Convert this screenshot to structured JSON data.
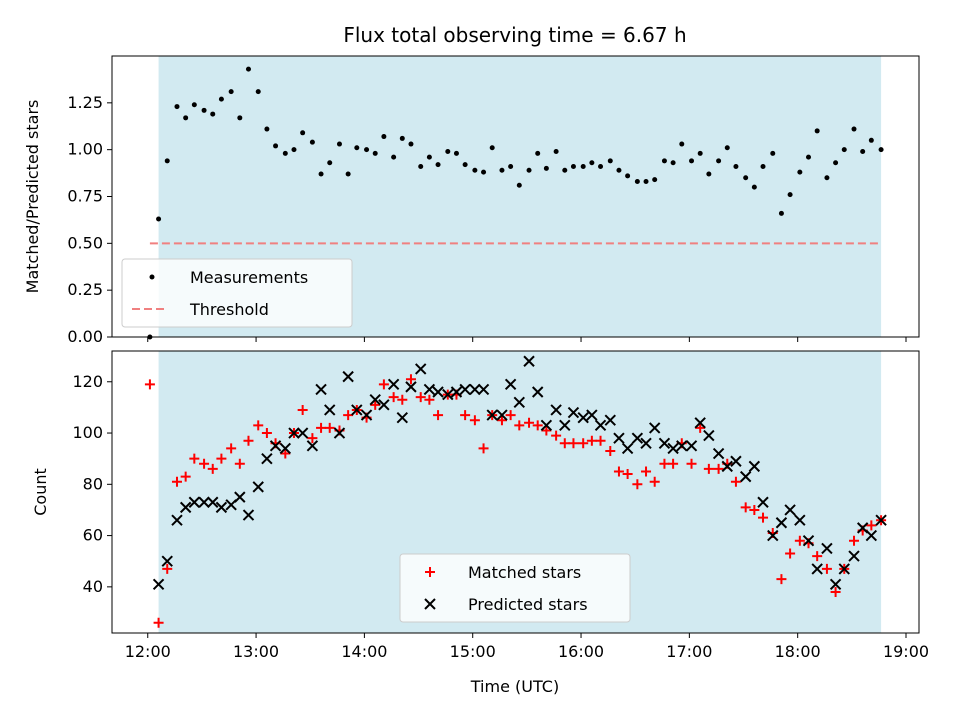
{
  "chart_data": {
    "title": "Flux total observing time = 6.67 h",
    "xlabel": "Time (UTC)",
    "x_tick_labels": [
      "12:00",
      "13:00",
      "14:00",
      "15:00",
      "16:00",
      "17:00",
      "18:00",
      "19:00"
    ],
    "x_ticks_hours": [
      12,
      13,
      14,
      15,
      16,
      17,
      18,
      19
    ],
    "xlim_hours": [
      11.67,
      19.12
    ],
    "shaded_span_hours": [
      12.1,
      18.77
    ],
    "shaded_color": "#add8e6",
    "panels": [
      {
        "type": "scatter",
        "ylabel": "Matched/Predicted stars",
        "ylim": [
          0,
          1.5
        ],
        "y_ticks": [
          0,
          0.25,
          0.5,
          0.75,
          1.0,
          1.25
        ],
        "y_tick_labels": [
          "0.00",
          "0.25",
          "0.50",
          "0.75",
          "1.00",
          "1.25"
        ],
        "legend": {
          "location": "lower-left",
          "entries": [
            "Measurements",
            "Threshold"
          ]
        },
        "series": [
          {
            "name": "Measurements",
            "color": "#000000",
            "marker": "dot",
            "x": [
              12.02,
              12.1,
              12.18,
              12.27,
              12.35,
              12.43,
              12.52,
              12.6,
              12.68,
              12.77,
              12.85,
              12.93,
              13.02,
              13.1,
              13.18,
              13.27,
              13.35,
              13.43,
              13.52,
              13.6,
              13.68,
              13.77,
              13.85,
              13.93,
              14.02,
              14.1,
              14.18,
              14.27,
              14.35,
              14.43,
              14.52,
              14.6,
              14.68,
              14.77,
              14.85,
              14.93,
              15.02,
              15.1,
              15.18,
              15.27,
              15.35,
              15.43,
              15.52,
              15.6,
              15.68,
              15.77,
              15.85,
              15.93,
              16.02,
              16.1,
              16.18,
              16.27,
              16.35,
              16.43,
              16.52,
              16.6,
              16.68,
              16.77,
              16.85,
              16.93,
              17.02,
              17.1,
              17.18,
              17.27,
              17.35,
              17.43,
              17.52,
              17.6,
              17.68,
              17.77,
              17.85,
              17.93,
              18.02,
              18.1,
              18.18,
              18.27,
              18.35,
              18.43,
              18.52,
              18.6,
              18.68,
              18.77
            ],
            "y": [
              0.0,
              0.63,
              0.94,
              1.23,
              1.17,
              1.24,
              1.21,
              1.19,
              1.27,
              1.31,
              1.17,
              1.43,
              1.31,
              1.11,
              1.02,
              0.98,
              1.0,
              1.09,
              1.04,
              0.87,
              0.93,
              1.03,
              0.87,
              1.01,
              1.0,
              0.98,
              1.07,
              0.96,
              1.06,
              1.03,
              0.91,
              0.96,
              0.92,
              0.99,
              0.98,
              0.92,
              0.89,
              0.88,
              1.01,
              0.89,
              0.91,
              0.81,
              0.89,
              0.98,
              0.9,
              0.99,
              0.89,
              0.91,
              0.91,
              0.93,
              0.91,
              0.94,
              0.89,
              0.86,
              0.83,
              0.83,
              0.84,
              0.94,
              0.93,
              1.03,
              0.94,
              0.98,
              0.87,
              0.94,
              1.01,
              0.91,
              0.85,
              0.8,
              0.91,
              0.98,
              0.66,
              0.76,
              0.88,
              0.96,
              1.1,
              0.85,
              0.93,
              1.0,
              1.11,
              0.99,
              1.05,
              1.0
            ]
          },
          {
            "name": "Threshold",
            "color": "#f08080",
            "style": "dashed",
            "x": [
              12.02,
              18.77
            ],
            "y": [
              0.5,
              0.5
            ]
          }
        ]
      },
      {
        "type": "scatter",
        "ylabel": "Count",
        "ylim": [
          22,
          132
        ],
        "y_ticks": [
          40,
          60,
          80,
          100,
          120
        ],
        "y_tick_labels": [
          "40",
          "60",
          "80",
          "100",
          "120"
        ],
        "legend": {
          "location": "lower-center",
          "entries": [
            "Matched stars",
            "Predicted stars"
          ]
        },
        "series": [
          {
            "name": "Matched stars",
            "color": "#ff0000",
            "marker": "plus",
            "x": [
              12.02,
              12.1,
              12.18,
              12.27,
              12.35,
              12.43,
              12.52,
              12.6,
              12.68,
              12.77,
              12.85,
              12.93,
              13.02,
              13.1,
              13.18,
              13.27,
              13.35,
              13.43,
              13.52,
              13.6,
              13.68,
              13.77,
              13.85,
              13.93,
              14.02,
              14.1,
              14.18,
              14.27,
              14.35,
              14.43,
              14.52,
              14.6,
              14.68,
              14.77,
              14.85,
              14.93,
              15.02,
              15.1,
              15.18,
              15.27,
              15.35,
              15.43,
              15.52,
              15.6,
              15.68,
              15.77,
              15.85,
              15.93,
              16.02,
              16.1,
              16.18,
              16.27,
              16.35,
              16.43,
              16.52,
              16.6,
              16.68,
              16.77,
              16.85,
              16.93,
              17.02,
              17.1,
              17.18,
              17.27,
              17.35,
              17.43,
              17.52,
              17.6,
              17.68,
              17.77,
              17.85,
              17.93,
              18.02,
              18.1,
              18.18,
              18.27,
              18.35,
              18.43,
              18.52,
              18.6,
              18.68,
              18.77
            ],
            "y": [
              119,
              26,
              47,
              81,
              83,
              90,
              88,
              86,
              90,
              94,
              88,
              97,
              103,
              100,
              96,
              92,
              100,
              109,
              98,
              102,
              102,
              101,
              107,
              109,
              106,
              111,
              119,
              114,
              113,
              121,
              114,
              113,
              107,
              115,
              115,
              107,
              105,
              94,
              107,
              105,
              107,
              103,
              104,
              103,
              101,
              99,
              96,
              96,
              96,
              97,
              97,
              93,
              85,
              84,
              80,
              85,
              81,
              88,
              88,
              96,
              88,
              102,
              86,
              86,
              88,
              81,
              71,
              70,
              67,
              61,
              43,
              53,
              58,
              57,
              52,
              47,
              38,
              47,
              58,
              62,
              64,
              66
            ]
          },
          {
            "name": "Predicted stars",
            "color": "#000000",
            "marker": "x",
            "x": [
              12.1,
              12.18,
              12.27,
              12.35,
              12.43,
              12.52,
              12.6,
              12.68,
              12.77,
              12.85,
              12.93,
              13.02,
              13.1,
              13.18,
              13.27,
              13.35,
              13.43,
              13.52,
              13.6,
              13.68,
              13.77,
              13.85,
              13.93,
              14.02,
              14.1,
              14.18,
              14.27,
              14.35,
              14.43,
              14.52,
              14.6,
              14.68,
              14.77,
              14.85,
              14.93,
              15.02,
              15.1,
              15.18,
              15.27,
              15.35,
              15.43,
              15.52,
              15.6,
              15.68,
              15.77,
              15.85,
              15.93,
              16.02,
              16.1,
              16.18,
              16.27,
              16.35,
              16.43,
              16.52,
              16.6,
              16.68,
              16.77,
              16.85,
              16.93,
              17.02,
              17.1,
              17.18,
              17.27,
              17.35,
              17.43,
              17.52,
              17.6,
              17.68,
              17.77,
              17.85,
              17.93,
              18.02,
              18.1,
              18.18,
              18.27,
              18.35,
              18.43,
              18.52,
              18.6,
              18.68,
              18.77
            ],
            "y": [
              41,
              50,
              66,
              71,
              73,
              73,
              73,
              71,
              72,
              75,
              68,
              79,
              90,
              95,
              94,
              100,
              100,
              95,
              117,
              109,
              100,
              122,
              109,
              107,
              113,
              111,
              119,
              106,
              118,
              125,
              117,
              116,
              115,
              116,
              117,
              117,
              117,
              107,
              107,
              119,
              112,
              128,
              116,
              103,
              109,
              103,
              108,
              106,
              107,
              103,
              105,
              98,
              94,
              98,
              96,
              102,
              96,
              94,
              95,
              95,
              104,
              99,
              92,
              87,
              89,
              83,
              87,
              73,
              60,
              65,
              70,
              66,
              58,
              47,
              55,
              41,
              47,
              52,
              63,
              60,
              66
            ]
          }
        ]
      }
    ]
  }
}
